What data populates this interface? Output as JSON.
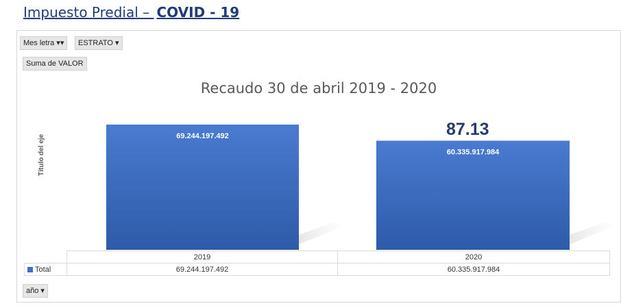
{
  "page": {
    "title_part1": "Impuesto Predial – ",
    "title_part2": "COVID - 19"
  },
  "filters": {
    "mes_letra": "Mes letra ▾▾",
    "estrato": "ESTRATO ▾",
    "suma": "Suma de VALOR",
    "anio": "año ▾"
  },
  "annotation": "87.13",
  "colors": {
    "bar": "#3f6fc6",
    "bar_dark": "#2f58a8"
  },
  "chart_data": {
    "type": "bar",
    "title": "Recaudo 30 de abril 2019 - 2020",
    "ylabel": "Título del eje",
    "categories": [
      "2019",
      "2020"
    ],
    "series": [
      {
        "name": "Total",
        "values": [
          69244197492,
          60335917984
        ],
        "labels": [
          "69.244.197.492",
          "60.335.917.984"
        ]
      }
    ],
    "legend": "bottom-left (data table)",
    "grid": false
  }
}
